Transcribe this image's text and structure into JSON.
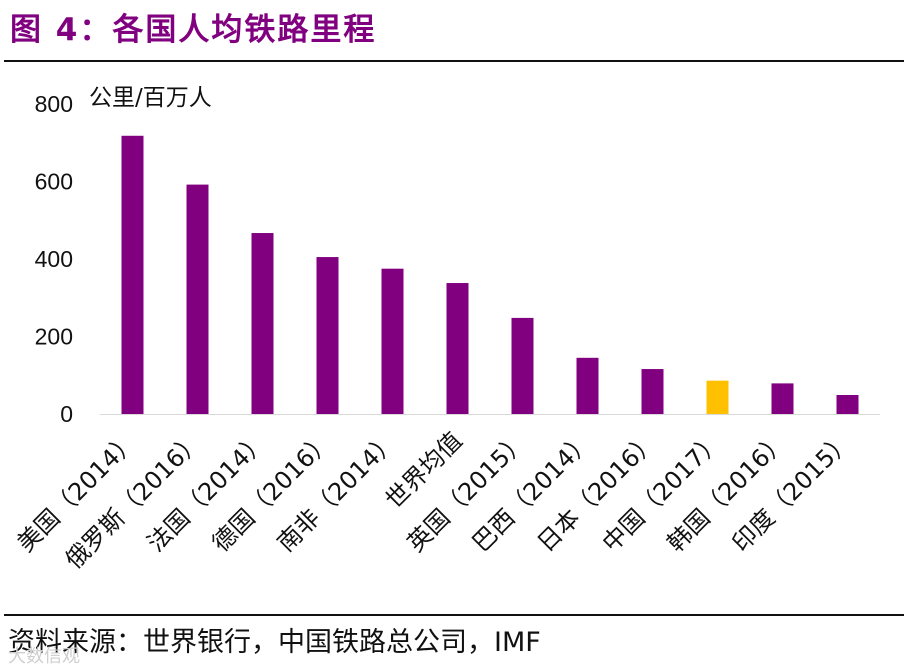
{
  "figure": {
    "title": "图 4：各国人均铁路里程",
    "source": "资料来源：世界银行，中国铁路总公司，IMF",
    "watermark": "大数信观"
  },
  "colors": {
    "bar": "#800080",
    "highlight": "#FFC000",
    "axis": "#000000"
  },
  "chart_data": {
    "type": "bar",
    "unit_label": "公里/百万人",
    "categories": [
      "美国（2014）",
      "俄罗斯（2016）",
      "法国（2014）",
      "德国（2016）",
      "南非（2014）",
      "世界均值",
      "英国（2015）",
      "巴西（2014）",
      "日本（2016）",
      "中国（2017）",
      "韩国（2016）",
      "印度（2015）"
    ],
    "values": [
      718,
      592,
      467,
      405,
      375,
      338,
      248,
      145,
      116,
      86,
      79,
      49
    ],
    "highlight_index": 9,
    "ylim": [
      0,
      800
    ],
    "yticks": [
      0,
      200,
      400,
      600,
      800
    ],
    "grid": false,
    "legend": "none"
  }
}
